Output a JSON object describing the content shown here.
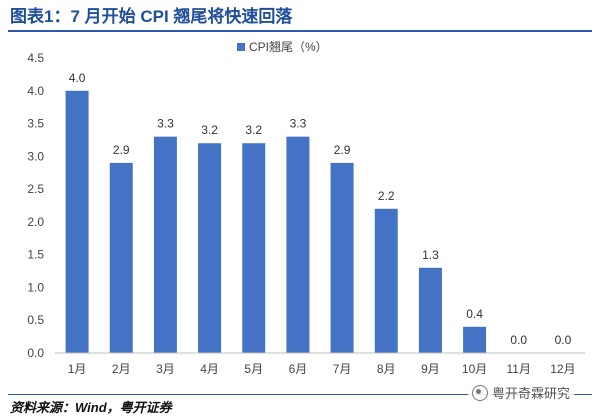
{
  "header": {
    "title": "图表1：7 月开始 CPI 翘尾将快速回落"
  },
  "footer": {
    "source": "资料来源：Wind，粤开证券",
    "watermark": "粤开奇霖研究"
  },
  "colors": {
    "bar": "#4472c4",
    "title": "#1f4e9a",
    "rule": "#2e5aa8"
  },
  "chart_data": {
    "type": "bar",
    "title": "",
    "xlabel": "",
    "ylabel": "",
    "categories": [
      "1月",
      "2月",
      "3月",
      "4月",
      "5月",
      "6月",
      "7月",
      "8月",
      "9月",
      "10月",
      "11月",
      "12月"
    ],
    "series": [
      {
        "name": "CPI翘尾（%）",
        "values": [
          4.0,
          2.9,
          3.3,
          3.2,
          3.2,
          3.3,
          2.9,
          2.2,
          1.3,
          0.4,
          0.0,
          0.0
        ]
      }
    ],
    "data_labels": [
      "4.0",
      "2.9",
      "3.3",
      "3.2",
      "3.2",
      "3.3",
      "2.9",
      "2.2",
      "1.3",
      "0.4",
      "0.0",
      "0.0"
    ],
    "ylim": [
      0,
      4.5
    ],
    "yticks": [
      0,
      0.5,
      1.0,
      1.5,
      2.0,
      2.5,
      3.0,
      3.5,
      4.0,
      4.5
    ],
    "ytick_labels": [
      "0.0",
      "0.5",
      "1.0",
      "1.5",
      "2.0",
      "2.5",
      "3.0",
      "3.5",
      "4.0",
      "4.5"
    ],
    "grid": false,
    "legend": "top-center"
  }
}
